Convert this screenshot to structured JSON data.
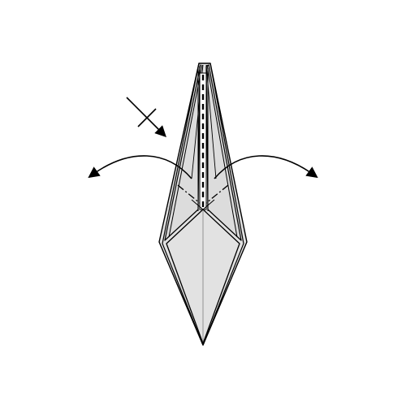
{
  "colors": {
    "background": "#ffffff",
    "paper": "#e2e2e2",
    "paper_light": "#f0f0f0",
    "outline": "#000000",
    "crease": "#8a8a8a"
  },
  "icons": {
    "fold_arrow_left": "curved-arrow-left-icon",
    "fold_arrow_right": "curved-arrow-right-icon",
    "push_arrow": "push-arrow-icon"
  }
}
